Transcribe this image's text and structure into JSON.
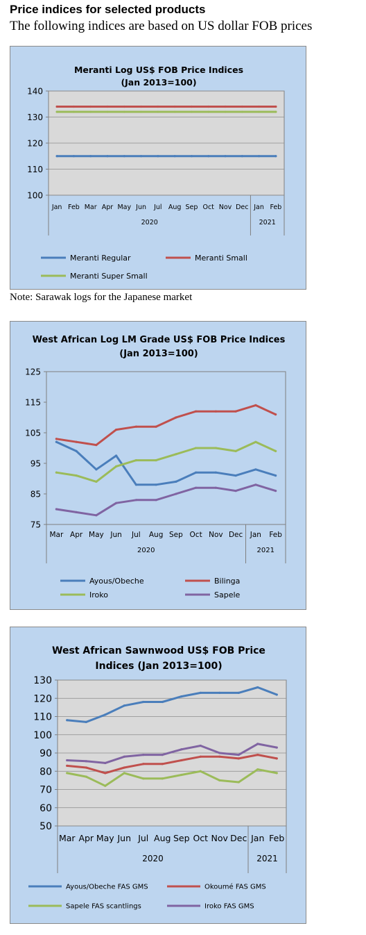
{
  "heading": "Price indices for selected products",
  "subheading": "The following indices are based on US dollar FOB prices",
  "note": "Note: Sarawak logs for the Japanese market",
  "charts": [
    {
      "chart_data": {
        "type": "line",
        "title_lines": [
          "Meranti Log US$ FOB Price Indices",
          "(Jan 2013=100)"
        ],
        "categories": [
          "Jan",
          "Feb",
          "Mar",
          "Apr",
          "May",
          "Jun",
          "Jul",
          "Aug",
          "Sep",
          "Oct",
          "Nov",
          "Dec",
          "Jan",
          "Feb"
        ],
        "year_groups": [
          {
            "label": "2020",
            "count": 12
          },
          {
            "label": "2021",
            "count": 2
          }
        ],
        "ylim": [
          100,
          140
        ],
        "yticks": [
          100,
          110,
          120,
          130,
          140
        ],
        "grid": true,
        "legend_position": "bottom",
        "series": [
          {
            "name": "Meranti Regular",
            "color": "#4a7ebb",
            "values": [
              115,
              115,
              115,
              115,
              115,
              115,
              115,
              115,
              115,
              115,
              115,
              115,
              115,
              115
            ]
          },
          {
            "name": "Meranti Small",
            "color": "#c0504d",
            "values": [
              134,
              134,
              134,
              134,
              134,
              134,
              134,
              134,
              134,
              134,
              134,
              134,
              134,
              134
            ]
          },
          {
            "name": "Meranti Super Small",
            "color": "#9bbb59",
            "values": [
              132,
              132,
              132,
              132,
              132,
              132,
              132,
              132,
              132,
              132,
              132,
              132,
              132,
              132
            ]
          }
        ]
      }
    },
    {
      "chart_data": {
        "type": "line",
        "title_lines": [
          "West African Log LM Grade US$ FOB Price Indices",
          "(Jan 2013=100)"
        ],
        "categories": [
          "Mar",
          "Apr",
          "May",
          "Jun",
          "Jul",
          "Aug",
          "Sep",
          "Oct",
          "Nov",
          "Dec",
          "Jan",
          "Feb"
        ],
        "year_groups": [
          {
            "label": "2020",
            "count": 10
          },
          {
            "label": "2021",
            "count": 2
          }
        ],
        "ylim": [
          75,
          125
        ],
        "yticks": [
          75,
          85,
          95,
          105,
          115,
          125
        ],
        "grid": false,
        "legend_position": "bottom",
        "series": [
          {
            "name": "Ayous/Obeche",
            "color": "#4a7ebb",
            "values": [
              102,
              99,
              93,
              97.5,
              88,
              88,
              89,
              92,
              92,
              91,
              93,
              91
            ]
          },
          {
            "name": "Bilinga",
            "color": "#c0504d",
            "values": [
              103,
              102,
              101,
              106,
              107,
              107,
              110,
              112,
              112,
              112,
              114,
              111
            ]
          },
          {
            "name": "Iroko",
            "color": "#9bbb59",
            "values": [
              92,
              91,
              89,
              94,
              96,
              96,
              98,
              100,
              100,
              99,
              102,
              99
            ]
          },
          {
            "name": "Sapele",
            "color": "#8064a2",
            "values": [
              80,
              79,
              78,
              82,
              83,
              83,
              85,
              87,
              87,
              86,
              88,
              86
            ]
          }
        ]
      }
    },
    {
      "chart_data": {
        "type": "line",
        "title_lines": [
          "West African Sawnwood US$ FOB Price",
          "Indices (Jan 2013=100)"
        ],
        "categories": [
          "Mar",
          "Apr",
          "May",
          "Jun",
          "Jul",
          "Aug",
          "Sep",
          "Oct",
          "Nov",
          "Dec",
          "Jan",
          "Feb"
        ],
        "year_groups": [
          {
            "label": "2020",
            "count": 10
          },
          {
            "label": "2021",
            "count": 2
          }
        ],
        "ylim": [
          50,
          130
        ],
        "yticks": [
          50,
          60,
          70,
          80,
          90,
          100,
          110,
          120,
          130
        ],
        "grid": true,
        "legend_position": "bottom",
        "series": [
          {
            "name": "Ayous/Obeche FAS GMS",
            "color": "#4a7ebb",
            "values": [
              108,
              107,
              111,
              116,
              118,
              118,
              121,
              123,
              123,
              123,
              126,
              122
            ]
          },
          {
            "name": "Okoumé FAS GMS",
            "color": "#c0504d",
            "values": [
              83,
              82,
              79,
              82,
              84,
              84,
              86,
              88,
              88,
              87,
              89,
              87
            ]
          },
          {
            "name": "Sapele FAS scantlings",
            "color": "#9bbb59",
            "values": [
              79,
              77,
              72,
              79,
              76,
              76,
              78,
              80,
              75,
              74,
              81,
              79
            ]
          },
          {
            "name": "Iroko FAS GMS",
            "color": "#8064a2",
            "values": [
              86,
              85.5,
              84.5,
              88,
              89,
              89,
              92,
              94,
              90,
              89,
              95,
              93
            ]
          }
        ]
      }
    }
  ]
}
